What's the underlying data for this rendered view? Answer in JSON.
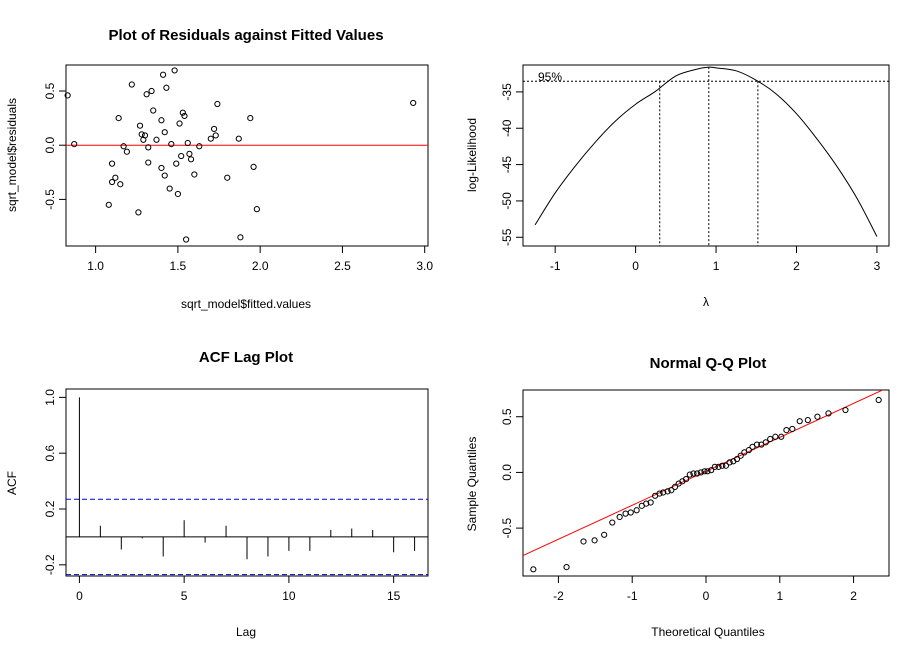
{
  "chart_data": [
    {
      "type": "scatter",
      "title": "Plot of Residuals against Fitted Values",
      "xlabel": "sqrt_model$fitted.values",
      "ylabel": "sqrt_model$residuals",
      "xlim": [
        0.82,
        3.02
      ],
      "ylim": [
        -0.93,
        0.74
      ],
      "x_ticks": [
        1.0,
        1.5,
        2.0,
        2.5,
        3.0
      ],
      "x_tick_labels": [
        "1.0",
        "1.5",
        "2.0",
        "2.5",
        "3.0"
      ],
      "y_ticks": [
        -0.5,
        0.0,
        0.5
      ],
      "y_tick_labels": [
        "-0.5",
        "0.0",
        "0.5"
      ],
      "reference_line": {
        "y": 0,
        "color": "#ff0000"
      },
      "points": [
        [
          0.83,
          0.46
        ],
        [
          0.87,
          0.01
        ],
        [
          1.08,
          -0.55
        ],
        [
          1.1,
          -0.34
        ],
        [
          1.1,
          -0.17
        ],
        [
          1.12,
          -0.3
        ],
        [
          1.14,
          0.25
        ],
        [
          1.15,
          -0.36
        ],
        [
          1.17,
          -0.01
        ],
        [
          1.19,
          -0.06
        ],
        [
          1.22,
          0.56
        ],
        [
          1.26,
          -0.62
        ],
        [
          1.27,
          0.18
        ],
        [
          1.28,
          0.1
        ],
        [
          1.29,
          0.05
        ],
        [
          1.3,
          0.09
        ],
        [
          1.31,
          0.47
        ],
        [
          1.32,
          -0.02
        ],
        [
          1.32,
          -0.16
        ],
        [
          1.34,
          0.5
        ],
        [
          1.35,
          0.32
        ],
        [
          1.37,
          0.05
        ],
        [
          1.4,
          -0.21
        ],
        [
          1.4,
          0.23
        ],
        [
          1.41,
          0.65
        ],
        [
          1.42,
          0.12
        ],
        [
          1.42,
          -0.28
        ],
        [
          1.43,
          0.53
        ],
        [
          1.45,
          -0.4
        ],
        [
          1.46,
          0.01
        ],
        [
          1.48,
          0.69
        ],
        [
          1.49,
          -0.17
        ],
        [
          1.5,
          -0.45
        ],
        [
          1.51,
          0.2
        ],
        [
          1.52,
          -0.1
        ],
        [
          1.53,
          0.3
        ],
        [
          1.54,
          0.27
        ],
        [
          1.55,
          -0.87
        ],
        [
          1.56,
          0.02
        ],
        [
          1.57,
          -0.08
        ],
        [
          1.58,
          -0.13
        ],
        [
          1.6,
          -0.27
        ],
        [
          1.63,
          -0.01
        ],
        [
          1.7,
          0.06
        ],
        [
          1.72,
          0.15
        ],
        [
          1.73,
          0.09
        ],
        [
          1.74,
          0.38
        ],
        [
          1.8,
          -0.3
        ],
        [
          1.87,
          0.06
        ],
        [
          1.88,
          -0.85
        ],
        [
          1.94,
          0.25
        ],
        [
          1.96,
          -0.2
        ],
        [
          1.98,
          -0.59
        ],
        [
          2.93,
          0.39
        ]
      ]
    },
    {
      "type": "line",
      "title": "",
      "xlabel": "λ",
      "ylabel": "log-Likelihood",
      "xlim": [
        -1.4,
        3.15
      ],
      "ylim": [
        -56.2,
        -31.3
      ],
      "x_ticks": [
        -1,
        0,
        1,
        2,
        3
      ],
      "x_tick_labels": [
        "-1",
        "0",
        "1",
        "2",
        "3"
      ],
      "y_ticks": [
        -35,
        -40,
        -45,
        -50,
        -55
      ],
      "y_tick_labels": [
        "-35",
        "-40",
        "-45",
        "-50",
        "-55"
      ],
      "annotation": "95%",
      "ci_level": -33.53,
      "lambda_max": 0.91,
      "ci_lower": 0.3,
      "ci_upper": 1.52,
      "curve_x": [
        -1.25,
        -1.0,
        -0.75,
        -0.5,
        -0.25,
        0.0,
        0.25,
        0.5,
        0.75,
        0.91,
        1.0,
        1.25,
        1.5,
        1.75,
        2.0,
        2.25,
        2.5,
        2.75,
        3.0
      ],
      "curve_y": [
        -53.3,
        -48.9,
        -45.2,
        -41.9,
        -39.0,
        -36.7,
        -34.9,
        -32.8,
        -31.9,
        -31.6,
        -31.7,
        -32.1,
        -33.4,
        -35.3,
        -38.0,
        -41.4,
        -45.2,
        -49.6,
        -54.9
      ]
    },
    {
      "type": "bar",
      "title": "ACF Lag Plot",
      "xlabel": "Lag",
      "ylabel": "ACF",
      "xlim": [
        -0.64,
        16.64
      ],
      "ylim": [
        -0.28,
        1.06
      ],
      "x_ticks": [
        0,
        5,
        10,
        15
      ],
      "x_tick_labels": [
        "0",
        "5",
        "10",
        "15"
      ],
      "y_ticks": [
        -0.2,
        0.2,
        0.6,
        1.0
      ],
      "y_tick_labels": [
        "-0.2",
        "0.2",
        "0.6",
        "1.0"
      ],
      "ci_bound": 0.27,
      "ci_color": "#0000cc",
      "lags": [
        0,
        1,
        2,
        3,
        4,
        5,
        6,
        7,
        8,
        9,
        10,
        11,
        12,
        13,
        14,
        15,
        16
      ],
      "values": [
        1.0,
        0.08,
        -0.09,
        -0.01,
        -0.14,
        0.12,
        -0.04,
        0.08,
        -0.16,
        -0.14,
        -0.1,
        -0.1,
        0.05,
        0.06,
        0.05,
        -0.11,
        -0.1
      ]
    },
    {
      "type": "scatter",
      "title": "Normal Q-Q Plot",
      "xlabel": "Theoretical Quantiles",
      "ylabel": "Sample Quantiles",
      "xlim": [
        -2.48,
        2.48
      ],
      "ylim": [
        -0.93,
        0.74
      ],
      "x_ticks": [
        -2,
        -1,
        0,
        1,
        2
      ],
      "x_tick_labels": [
        "-2",
        "-1",
        "0",
        "1",
        "2"
      ],
      "y_ticks": [
        -0.5,
        0.0,
        0.5
      ],
      "y_tick_labels": [
        "-0.5",
        "0.0",
        "0.5"
      ],
      "qq_line": {
        "intercept": 0.01,
        "slope": 0.305,
        "color": "#ff0000"
      },
      "points": [
        [
          -2.34,
          -0.87
        ],
        [
          -1.89,
          -0.85
        ],
        [
          -1.66,
          -0.62
        ],
        [
          -1.51,
          -0.61
        ],
        [
          -1.38,
          -0.56
        ],
        [
          -1.27,
          -0.45
        ],
        [
          -1.17,
          -0.4
        ],
        [
          -1.09,
          -0.37
        ],
        [
          -1.02,
          -0.36
        ],
        [
          -0.94,
          -0.34
        ],
        [
          -0.87,
          -0.3
        ],
        [
          -0.81,
          -0.28
        ],
        [
          -0.75,
          -0.27
        ],
        [
          -0.69,
          -0.21
        ],
        [
          -0.63,
          -0.19
        ],
        [
          -0.58,
          -0.18
        ],
        [
          -0.52,
          -0.17
        ],
        [
          -0.47,
          -0.16
        ],
        [
          -0.42,
          -0.13
        ],
        [
          -0.37,
          -0.1
        ],
        [
          -0.32,
          -0.08
        ],
        [
          -0.27,
          -0.06
        ],
        [
          -0.22,
          -0.02
        ],
        [
          -0.17,
          -0.01
        ],
        [
          -0.12,
          -0.01
        ],
        [
          -0.07,
          0.0
        ],
        [
          -0.02,
          0.01
        ],
        [
          0.02,
          0.01
        ],
        [
          0.07,
          0.02
        ],
        [
          0.12,
          0.05
        ],
        [
          0.17,
          0.05
        ],
        [
          0.22,
          0.06
        ],
        [
          0.27,
          0.06
        ],
        [
          0.32,
          0.09
        ],
        [
          0.37,
          0.1
        ],
        [
          0.42,
          0.12
        ],
        [
          0.47,
          0.15
        ],
        [
          0.52,
          0.18
        ],
        [
          0.58,
          0.2
        ],
        [
          0.63,
          0.23
        ],
        [
          0.69,
          0.25
        ],
        [
          0.75,
          0.25
        ],
        [
          0.81,
          0.27
        ],
        [
          0.87,
          0.3
        ],
        [
          0.94,
          0.32
        ],
        [
          1.02,
          0.32
        ],
        [
          1.09,
          0.38
        ],
        [
          1.17,
          0.39
        ],
        [
          1.27,
          0.46
        ],
        [
          1.38,
          0.47
        ],
        [
          1.51,
          0.5
        ],
        [
          1.66,
          0.53
        ],
        [
          1.89,
          0.56
        ],
        [
          2.34,
          0.65
        ]
      ]
    }
  ]
}
